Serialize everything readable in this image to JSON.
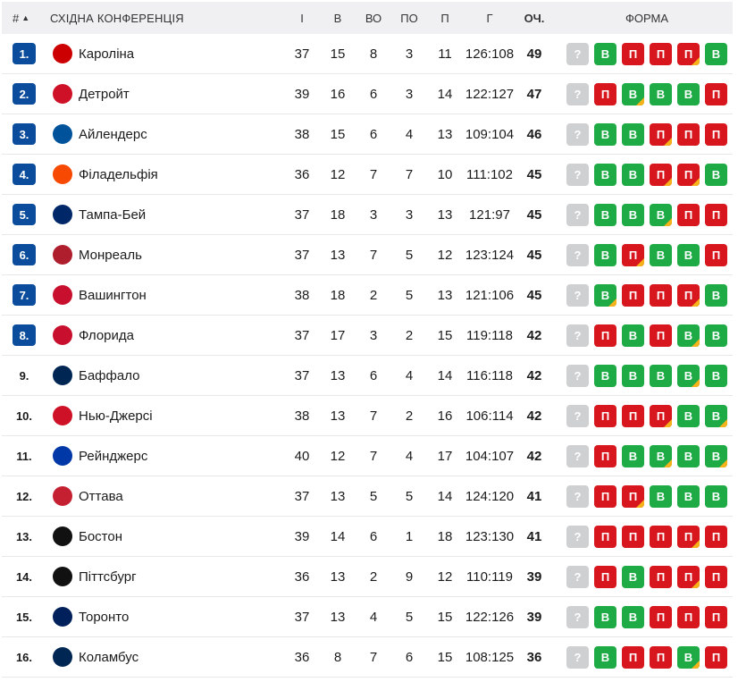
{
  "header": {
    "rank": "#",
    "sort_icon": "▲",
    "title": "СХІДНА КОНФЕРЕНЦІЯ",
    "gp": "І",
    "w": "В",
    "otw": "ВО",
    "otl": "ПО",
    "l": "П",
    "goals": "Г",
    "pts": "ОЧ.",
    "form": "ФОРМА"
  },
  "colors": {
    "badge": "#0b4d9c",
    "win": "#1eab45",
    "loss": "#d8161e",
    "unknown": "#cfd0d2",
    "overtime": "#f6b21b"
  },
  "rows": [
    {
      "rank": "1.",
      "badge": true,
      "team": "Кароліна",
      "logo_icon": "carolina-hurricanes-logo-icon",
      "logo_color": "#cc0000",
      "gp": "37",
      "w": "15",
      "otw": "8",
      "otl": "3",
      "l": "11",
      "goals": "126:108",
      "pts": "49",
      "form": [
        {
          "r": "?",
          "c": "Q",
          "ot": false
        },
        {
          "r": "В",
          "c": "W",
          "ot": false
        },
        {
          "r": "П",
          "c": "L",
          "ot": false
        },
        {
          "r": "П",
          "c": "L",
          "ot": false
        },
        {
          "r": "П",
          "c": "L",
          "ot": true
        },
        {
          "r": "В",
          "c": "W",
          "ot": false
        }
      ]
    },
    {
      "rank": "2.",
      "badge": true,
      "team": "Детройт",
      "logo_icon": "detroit-red-wings-logo-icon",
      "logo_color": "#ce1126",
      "gp": "39",
      "w": "16",
      "otw": "6",
      "otl": "3",
      "l": "14",
      "goals": "122:127",
      "pts": "47",
      "form": [
        {
          "r": "?",
          "c": "Q",
          "ot": false
        },
        {
          "r": "П",
          "c": "L",
          "ot": false
        },
        {
          "r": "В",
          "c": "W",
          "ot": true
        },
        {
          "r": "В",
          "c": "W",
          "ot": false
        },
        {
          "r": "В",
          "c": "W",
          "ot": false
        },
        {
          "r": "П",
          "c": "L",
          "ot": false
        }
      ]
    },
    {
      "rank": "3.",
      "badge": true,
      "team": "Айлендерс",
      "logo_icon": "new-york-islanders-logo-icon",
      "logo_color": "#00539b",
      "gp": "38",
      "w": "15",
      "otw": "6",
      "otl": "4",
      "l": "13",
      "goals": "109:104",
      "pts": "46",
      "form": [
        {
          "r": "?",
          "c": "Q",
          "ot": false
        },
        {
          "r": "В",
          "c": "W",
          "ot": false
        },
        {
          "r": "В",
          "c": "W",
          "ot": false
        },
        {
          "r": "П",
          "c": "L",
          "ot": true
        },
        {
          "r": "П",
          "c": "L",
          "ot": false
        },
        {
          "r": "П",
          "c": "L",
          "ot": false
        }
      ]
    },
    {
      "rank": "4.",
      "badge": true,
      "team": "Філадельфія",
      "logo_icon": "philadelphia-flyers-logo-icon",
      "logo_color": "#f74902",
      "gp": "36",
      "w": "12",
      "otw": "7",
      "otl": "7",
      "l": "10",
      "goals": "111:102",
      "pts": "45",
      "form": [
        {
          "r": "?",
          "c": "Q",
          "ot": false
        },
        {
          "r": "В",
          "c": "W",
          "ot": false
        },
        {
          "r": "В",
          "c": "W",
          "ot": false
        },
        {
          "r": "П",
          "c": "L",
          "ot": true
        },
        {
          "r": "П",
          "c": "L",
          "ot": true
        },
        {
          "r": "В",
          "c": "W",
          "ot": false
        }
      ]
    },
    {
      "rank": "5.",
      "badge": true,
      "team": "Тампа-Бей",
      "logo_icon": "tampa-bay-lightning-logo-icon",
      "logo_color": "#002868",
      "gp": "37",
      "w": "18",
      "otw": "3",
      "otl": "3",
      "l": "13",
      "goals": "121:97",
      "pts": "45",
      "form": [
        {
          "r": "?",
          "c": "Q",
          "ot": false
        },
        {
          "r": "В",
          "c": "W",
          "ot": false
        },
        {
          "r": "В",
          "c": "W",
          "ot": false
        },
        {
          "r": "В",
          "c": "W",
          "ot": true
        },
        {
          "r": "П",
          "c": "L",
          "ot": false
        },
        {
          "r": "П",
          "c": "L",
          "ot": false
        }
      ]
    },
    {
      "rank": "6.",
      "badge": true,
      "team": "Монреаль",
      "logo_icon": "montreal-canadiens-logo-icon",
      "logo_color": "#af1e2d",
      "gp": "37",
      "w": "13",
      "otw": "7",
      "otl": "5",
      "l": "12",
      "goals": "123:124",
      "pts": "45",
      "form": [
        {
          "r": "?",
          "c": "Q",
          "ot": false
        },
        {
          "r": "В",
          "c": "W",
          "ot": false
        },
        {
          "r": "П",
          "c": "L",
          "ot": true
        },
        {
          "r": "В",
          "c": "W",
          "ot": false
        },
        {
          "r": "В",
          "c": "W",
          "ot": false
        },
        {
          "r": "П",
          "c": "L",
          "ot": false
        }
      ]
    },
    {
      "rank": "7.",
      "badge": true,
      "team": "Вашингтон",
      "logo_icon": "washington-capitals-logo-icon",
      "logo_color": "#c8102e",
      "gp": "38",
      "w": "18",
      "otw": "2",
      "otl": "5",
      "l": "13",
      "goals": "121:106",
      "pts": "45",
      "form": [
        {
          "r": "?",
          "c": "Q",
          "ot": false
        },
        {
          "r": "В",
          "c": "W",
          "ot": true
        },
        {
          "r": "П",
          "c": "L",
          "ot": false
        },
        {
          "r": "П",
          "c": "L",
          "ot": false
        },
        {
          "r": "П",
          "c": "L",
          "ot": true
        },
        {
          "r": "В",
          "c": "W",
          "ot": false
        }
      ]
    },
    {
      "rank": "8.",
      "badge": true,
      "team": "Флорида",
      "logo_icon": "florida-panthers-logo-icon",
      "logo_color": "#c8102e",
      "gp": "37",
      "w": "17",
      "otw": "3",
      "otl": "2",
      "l": "15",
      "goals": "119:118",
      "pts": "42",
      "form": [
        {
          "r": "?",
          "c": "Q",
          "ot": false
        },
        {
          "r": "П",
          "c": "L",
          "ot": false
        },
        {
          "r": "В",
          "c": "W",
          "ot": false
        },
        {
          "r": "П",
          "c": "L",
          "ot": false
        },
        {
          "r": "В",
          "c": "W",
          "ot": true
        },
        {
          "r": "В",
          "c": "W",
          "ot": false
        }
      ]
    },
    {
      "rank": "9.",
      "badge": false,
      "team": "Баффало",
      "logo_icon": "buffalo-sabres-logo-icon",
      "logo_color": "#002654",
      "gp": "37",
      "w": "13",
      "otw": "6",
      "otl": "4",
      "l": "14",
      "goals": "116:118",
      "pts": "42",
      "form": [
        {
          "r": "?",
          "c": "Q",
          "ot": false
        },
        {
          "r": "В",
          "c": "W",
          "ot": false
        },
        {
          "r": "В",
          "c": "W",
          "ot": false
        },
        {
          "r": "В",
          "c": "W",
          "ot": false
        },
        {
          "r": "В",
          "c": "W",
          "ot": true
        },
        {
          "r": "В",
          "c": "W",
          "ot": false
        }
      ]
    },
    {
      "rank": "10.",
      "badge": false,
      "team": "Нью-Джерсі",
      "logo_icon": "new-jersey-devils-logo-icon",
      "logo_color": "#ce1126",
      "gp": "38",
      "w": "13",
      "otw": "7",
      "otl": "2",
      "l": "16",
      "goals": "106:114",
      "pts": "42",
      "form": [
        {
          "r": "?",
          "c": "Q",
          "ot": false
        },
        {
          "r": "П",
          "c": "L",
          "ot": false
        },
        {
          "r": "П",
          "c": "L",
          "ot": false
        },
        {
          "r": "П",
          "c": "L",
          "ot": true
        },
        {
          "r": "В",
          "c": "W",
          "ot": false
        },
        {
          "r": "В",
          "c": "W",
          "ot": true
        }
      ]
    },
    {
      "rank": "11.",
      "badge": false,
      "team": "Рейнджерс",
      "logo_icon": "new-york-rangers-logo-icon",
      "logo_color": "#0038a8",
      "gp": "40",
      "w": "12",
      "otw": "7",
      "otl": "4",
      "l": "17",
      "goals": "104:107",
      "pts": "42",
      "form": [
        {
          "r": "?",
          "c": "Q",
          "ot": false
        },
        {
          "r": "П",
          "c": "L",
          "ot": false
        },
        {
          "r": "В",
          "c": "W",
          "ot": false
        },
        {
          "r": "В",
          "c": "W",
          "ot": true
        },
        {
          "r": "В",
          "c": "W",
          "ot": false
        },
        {
          "r": "В",
          "c": "W",
          "ot": true
        }
      ]
    },
    {
      "rank": "12.",
      "badge": false,
      "team": "Оттава",
      "logo_icon": "ottawa-senators-logo-icon",
      "logo_color": "#c52032",
      "gp": "37",
      "w": "13",
      "otw": "5",
      "otl": "5",
      "l": "14",
      "goals": "124:120",
      "pts": "41",
      "form": [
        {
          "r": "?",
          "c": "Q",
          "ot": false
        },
        {
          "r": "П",
          "c": "L",
          "ot": false
        },
        {
          "r": "П",
          "c": "L",
          "ot": true
        },
        {
          "r": "В",
          "c": "W",
          "ot": false
        },
        {
          "r": "В",
          "c": "W",
          "ot": false
        },
        {
          "r": "В",
          "c": "W",
          "ot": false
        }
      ]
    },
    {
      "rank": "13.",
      "badge": false,
      "team": "Бостон",
      "logo_icon": "boston-bruins-logo-icon",
      "logo_color": "#111111",
      "gp": "39",
      "w": "14",
      "otw": "6",
      "otl": "1",
      "l": "18",
      "goals": "123:130",
      "pts": "41",
      "form": [
        {
          "r": "?",
          "c": "Q",
          "ot": false
        },
        {
          "r": "П",
          "c": "L",
          "ot": false
        },
        {
          "r": "П",
          "c": "L",
          "ot": false
        },
        {
          "r": "П",
          "c": "L",
          "ot": false
        },
        {
          "r": "П",
          "c": "L",
          "ot": true
        },
        {
          "r": "П",
          "c": "L",
          "ot": false
        }
      ]
    },
    {
      "rank": "14.",
      "badge": false,
      "team": "Піттсбург",
      "logo_icon": "pittsburgh-penguins-logo-icon",
      "logo_color": "#111111",
      "gp": "36",
      "w": "13",
      "otw": "2",
      "otl": "9",
      "l": "12",
      "goals": "110:119",
      "pts": "39",
      "form": [
        {
          "r": "?",
          "c": "Q",
          "ot": false
        },
        {
          "r": "П",
          "c": "L",
          "ot": false
        },
        {
          "r": "В",
          "c": "W",
          "ot": false
        },
        {
          "r": "П",
          "c": "L",
          "ot": false
        },
        {
          "r": "П",
          "c": "L",
          "ot": true
        },
        {
          "r": "П",
          "c": "L",
          "ot": false
        }
      ]
    },
    {
      "rank": "15.",
      "badge": false,
      "team": "Торонто",
      "logo_icon": "toronto-maple-leafs-logo-icon",
      "logo_color": "#00205b",
      "gp": "37",
      "w": "13",
      "otw": "4",
      "otl": "5",
      "l": "15",
      "goals": "122:126",
      "pts": "39",
      "form": [
        {
          "r": "?",
          "c": "Q",
          "ot": false
        },
        {
          "r": "В",
          "c": "W",
          "ot": false
        },
        {
          "r": "В",
          "c": "W",
          "ot": false
        },
        {
          "r": "П",
          "c": "L",
          "ot": false
        },
        {
          "r": "П",
          "c": "L",
          "ot": false
        },
        {
          "r": "П",
          "c": "L",
          "ot": false
        }
      ]
    },
    {
      "rank": "16.",
      "badge": false,
      "team": "Коламбус",
      "logo_icon": "columbus-blue-jackets-logo-icon",
      "logo_color": "#002654",
      "gp": "36",
      "w": "8",
      "otw": "7",
      "otl": "6",
      "l": "15",
      "goals": "108:125",
      "pts": "36",
      "form": [
        {
          "r": "?",
          "c": "Q",
          "ot": false
        },
        {
          "r": "В",
          "c": "W",
          "ot": false
        },
        {
          "r": "П",
          "c": "L",
          "ot": false
        },
        {
          "r": "П",
          "c": "L",
          "ot": false
        },
        {
          "r": "В",
          "c": "W",
          "ot": true
        },
        {
          "r": "П",
          "c": "L",
          "ot": false
        }
      ]
    }
  ]
}
